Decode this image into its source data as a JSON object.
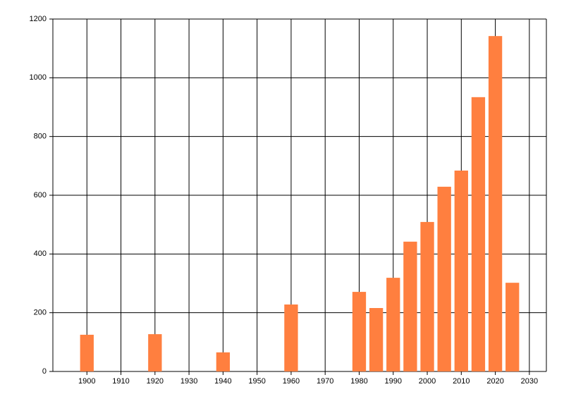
{
  "chart_data": {
    "type": "bar",
    "x": [
      1900,
      1920,
      1940,
      1960,
      1980,
      1985,
      1990,
      1995,
      2000,
      2005,
      2010,
      2015,
      2020,
      2025
    ],
    "values": [
      125,
      127,
      65,
      228,
      271,
      216,
      319,
      442,
      509,
      629,
      684,
      934,
      1142,
      302
    ],
    "color": "#ff7f3f",
    "xlim": [
      1890,
      2035
    ],
    "xticks": [
      1900,
      1910,
      1920,
      1930,
      1940,
      1950,
      1960,
      1970,
      1980,
      1990,
      2000,
      2010,
      2020,
      2030
    ],
    "ylim": [
      0,
      1200
    ],
    "yticks": [
      0,
      200,
      400,
      600,
      800,
      1000,
      1200
    ],
    "grid": true
  }
}
